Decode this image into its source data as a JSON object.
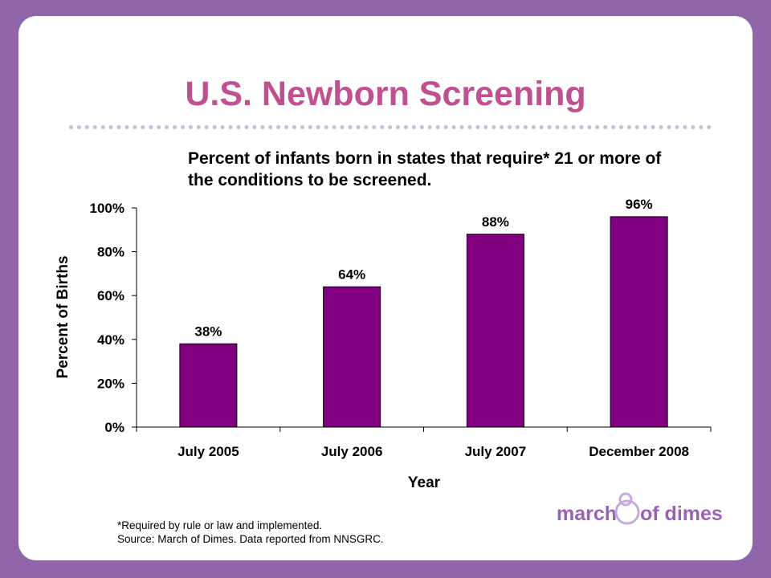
{
  "slide": {
    "title": "U.S. Newborn Screening",
    "subtitle": "Percent of infants born in states that require* 21 or more of the conditions to be screened.",
    "footnote": "*Required by rule or law and implemented.",
    "source": "Source: March of Dimes. Data reported from NNSGRC.",
    "logo": "march of dimes",
    "colors": {
      "background": "#9066a9",
      "title": "#c0508f",
      "bar": "#800080"
    }
  },
  "chart_data": {
    "type": "bar",
    "categories": [
      "July 2005",
      "July 2006",
      "July 2007",
      "December 2008"
    ],
    "values": [
      38,
      64,
      88,
      96
    ],
    "data_labels": [
      "38%",
      "64%",
      "88%",
      "96%"
    ],
    "xlabel": "Year",
    "ylabel": "Percent of Births",
    "ylim": [
      0,
      100
    ],
    "yticks": [
      "0%",
      "20%",
      "40%",
      "60%",
      "80%",
      "100%"
    ],
    "grid": false
  }
}
